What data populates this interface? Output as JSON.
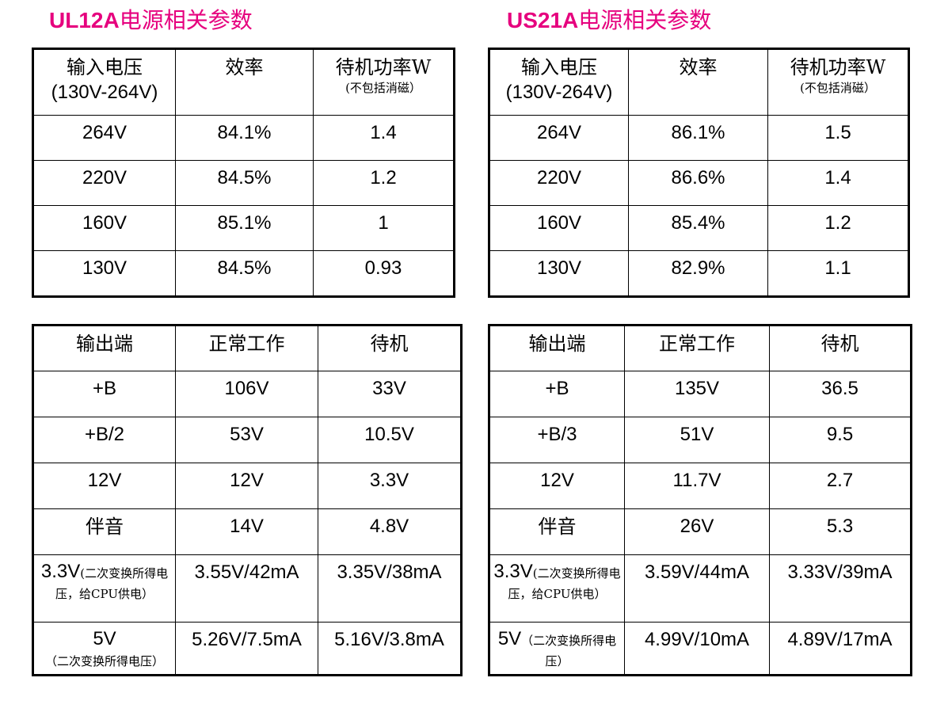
{
  "left": {
    "title_model": "UL12A",
    "title_suffix": "电源相关参数",
    "input_table": {
      "headers": {
        "voltage_line1": "输入电压",
        "voltage_line2": "(130V-264V)",
        "efficiency": "效率",
        "standby_power": "待机功率W",
        "standby_note": "(不包括消磁）"
      },
      "rows": [
        {
          "voltage": "264V",
          "efficiency": "84.1%",
          "standby": "1.4"
        },
        {
          "voltage": "220V",
          "efficiency": "84.5%",
          "standby": "1.2"
        },
        {
          "voltage": "160V",
          "efficiency": "85.1%",
          "standby": "1"
        },
        {
          "voltage": "130V",
          "efficiency": "84.5%",
          "standby": "0.93"
        }
      ]
    },
    "output_table": {
      "headers": {
        "terminal": "输出端",
        "normal": "正常工作",
        "standby": "待机"
      },
      "rows": [
        {
          "terminal": "+B",
          "normal": "106V",
          "standby": "33V"
        },
        {
          "terminal": "+B/2",
          "normal": "53V",
          "standby": "10.5V"
        },
        {
          "terminal": "12V",
          "normal": "12V",
          "standby": "3.3V"
        },
        {
          "terminal": "伴音",
          "normal": "14V",
          "standby": "4.8V"
        }
      ],
      "row_33v": {
        "main": "3.3V",
        "note": "(二次变换所得电压，给CPU供电）",
        "normal": "3.55V/42mA",
        "standby": "3.35V/38mA"
      },
      "row_5v": {
        "main": "5V",
        "note": "（二次变换所得电压）",
        "normal": "5.26V/7.5mA",
        "standby": "5.16V/3.8mA"
      }
    }
  },
  "right": {
    "title_model": "US21A",
    "title_suffix": "电源相关参数",
    "input_table": {
      "headers": {
        "voltage_line1": "输入电压",
        "voltage_line2": "(130V-264V)",
        "efficiency": "效率",
        "standby_power": "待机功率W",
        "standby_note": "(不包括消磁）"
      },
      "rows": [
        {
          "voltage": "264V",
          "efficiency": "86.1%",
          "standby": "1.5"
        },
        {
          "voltage": "220V",
          "efficiency": "86.6%",
          "standby": "1.4"
        },
        {
          "voltage": "160V",
          "efficiency": "85.4%",
          "standby": "1.2"
        },
        {
          "voltage": "130V",
          "efficiency": "82.9%",
          "standby": "1.1"
        }
      ]
    },
    "output_table": {
      "headers": {
        "terminal": "输出端",
        "normal": "正常工作",
        "standby": "待机"
      },
      "rows": [
        {
          "terminal": "+B",
          "normal": "135V",
          "standby": "36.5"
        },
        {
          "terminal": "+B/3",
          "normal": "51V",
          "standby": "9.5"
        },
        {
          "terminal": "12V",
          "normal": "11.7V",
          "standby": "2.7"
        },
        {
          "terminal": "伴音",
          "normal": "26V",
          "standby": "5.3"
        }
      ],
      "row_33v": {
        "main": "3.3V",
        "note": "(二次变换所得电压，给CPU供电）",
        "normal": "3.59V/44mA",
        "standby": "3.33V/39mA"
      },
      "row_5v": {
        "main": "5V",
        "note": "（二次变换所得电压）",
        "normal": "4.99V/10mA",
        "standby": "4.89V/17mA"
      }
    }
  },
  "colors": {
    "title": "#e6007e",
    "border": "#000000",
    "background": "#ffffff"
  }
}
